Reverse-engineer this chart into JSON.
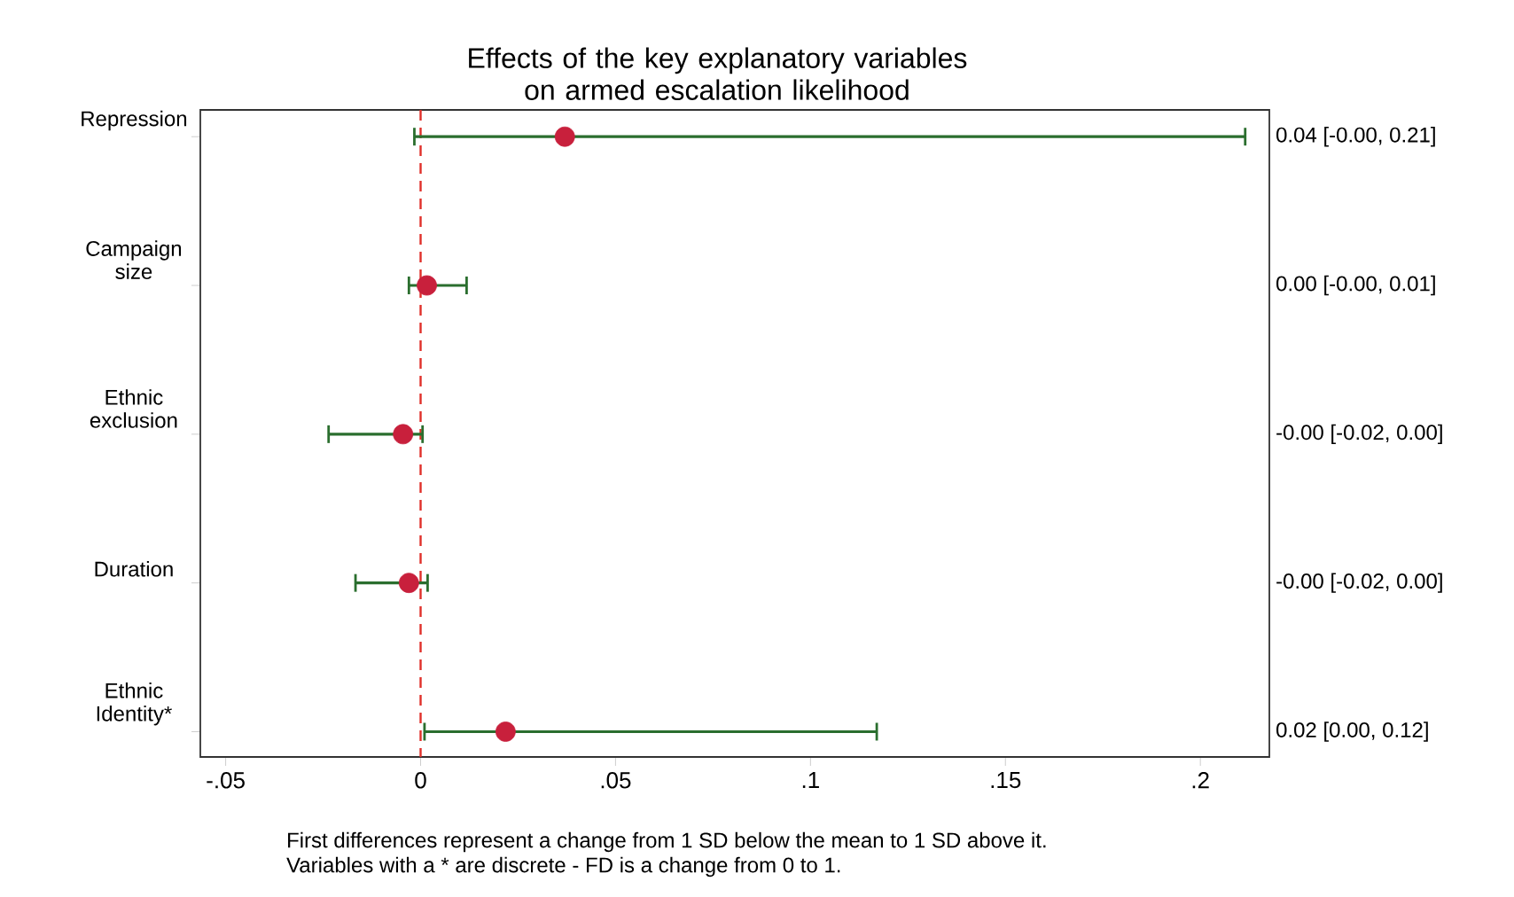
{
  "chart_data": {
    "type": "scatter",
    "orientation": "horizontal",
    "title": "Effects of the key explanatory variables on armed escalation likelihood",
    "categories": [
      "Repression",
      "Campaign size",
      "Ethnic exclusion",
      "Duration",
      "Ethnic Identity*"
    ],
    "values": [
      0.037,
      0.0016,
      -0.0045,
      -0.003,
      0.0218
    ],
    "errors": [
      [
        -0.0016,
        0.2115
      ],
      [
        -0.003,
        0.0118
      ],
      [
        -0.0236,
        0.0005
      ],
      [
        -0.0167,
        0.0018
      ],
      [
        0.001,
        0.117
      ]
    ],
    "value_labels": [
      "0.04 [-0.00, 0.21]",
      "0.00 [-0.00, 0.01]",
      "-0.00 [-0.02, 0.00]",
      "-0.00 [-0.02, 0.00]",
      "0.02 [0.00, 0.12]"
    ],
    "color": "#c8203c",
    "marker": "circle",
    "xlim": [
      -0.0565,
      0.2177
    ],
    "xticks": [
      {
        "value": -0.05,
        "label": "-.05"
      },
      0,
      {
        "value": 0.05,
        "label": ".05"
      },
      {
        "value": 0.1,
        "label": ".1"
      },
      {
        "value": 0.15,
        "label": ".15"
      },
      {
        "value": 0.2,
        "label": ".2"
      }
    ],
    "ref_lines": [
      {
        "axis": "x",
        "value": 0,
        "color": "#e0302a",
        "line_style": "dashed"
      }
    ],
    "grid": false,
    "annotations": [
      "First differences represent a change from 1 SD below the mean to 1 SD above it.",
      "Variables with a * are discrete - FD is a change from 0 to 1."
    ]
  }
}
